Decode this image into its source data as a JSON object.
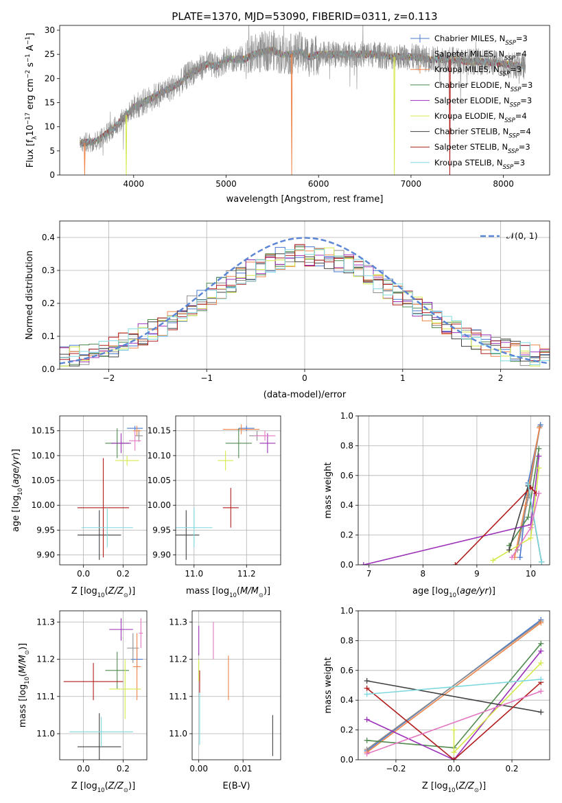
{
  "colors": {
    "Chabrier MILES": "#4878d0",
    "Salpeter MILES": "#8c8c8c",
    "Kroupa MILES": "#ee854a",
    "Chabrier ELODIE": "#4f8a4f",
    "Salpeter ELODIE": "#9b30b8",
    "Kroupa ELODIE": "#d5e84a",
    "Chabrier STELIB": "#404040",
    "Salpeter STELIB": "#b01c1c",
    "Kroupa STELIB": "#7ed8df",
    "extra_pink": "#e377c2",
    "gaussian": "#5b86d6"
  },
  "chart_data": [
    {
      "id": "spectrum",
      "type": "line",
      "title": "PLATE=1370, MJD=53090, FIBERID=0311, z=0.113",
      "xlabel": "wavelength [Angstrom, rest frame]",
      "ylabel": "Flux [f_λ 10^-17 erg cm^-2 s^-1 A^-1]",
      "xlim": [
        3200,
        8500
      ],
      "ylim": [
        0,
        31
      ],
      "xticks": [
        "4000",
        "5000",
        "6000",
        "7000",
        "8000"
      ],
      "yticks": [
        "0",
        "5",
        "10",
        "15",
        "20",
        "25",
        "30"
      ],
      "grid": false,
      "legend_position": "top-right",
      "legend": [
        {
          "name": "Chabrier MILES",
          "nssp": "3"
        },
        {
          "name": "Salpeter MILES",
          "nssp": "4"
        },
        {
          "name": "Kroupa MILES",
          "nssp": "3"
        },
        {
          "name": "Chabrier ELODIE",
          "nssp": "3"
        },
        {
          "name": "Salpeter ELODIE",
          "nssp": "3"
        },
        {
          "name": "Kroupa ELODIE",
          "nssp": "4"
        },
        {
          "name": "Chabrier STELIB",
          "nssp": "4"
        },
        {
          "name": "Salpeter STELIB",
          "nssp": "3"
        },
        {
          "name": "Kroupa STELIB",
          "nssp": "3"
        }
      ],
      "continuum": {
        "x": [
          3420,
          3600,
          3700,
          3800,
          3900,
          4000,
          4100,
          4200,
          4300,
          4400,
          4500,
          4600,
          4700,
          4800,
          4900,
          5000,
          5100,
          5200,
          5300,
          5400,
          5500,
          5600,
          5700,
          5800,
          5900,
          6000,
          6200,
          6400,
          6600,
          6800,
          7000,
          7200,
          7400,
          7600,
          7800,
          8000,
          8240
        ],
        "y": [
          6.5,
          7.0,
          8.5,
          10.0,
          12.0,
          14.0,
          15.0,
          16.0,
          17.0,
          18.0,
          19.0,
          21.0,
          22.0,
          23.0,
          22.5,
          24.0,
          24.0,
          24.0,
          25.0,
          25.5,
          26.0,
          25.0,
          25.0,
          25.5,
          24.5,
          25.0,
          25.0,
          25.0,
          25.0,
          24.5,
          24.5,
          24.0,
          24.0,
          23.5,
          23.5,
          23.0,
          22.5
        ]
      },
      "dropouts": [
        {
          "x": 3470,
          "series": "Kroupa MILES"
        },
        {
          "x": 3920,
          "series": "Kroupa ELODIE"
        },
        {
          "x": 5710,
          "series": "Kroupa MILES"
        },
        {
          "x": 6820,
          "series": "Kroupa ELODIE"
        },
        {
          "x": 7420,
          "series": "Salpeter STELIB"
        }
      ]
    },
    {
      "id": "residuals",
      "type": "line",
      "xlabel": "(data-model)/error",
      "ylabel": "Normed distribution",
      "xlim": [
        -2.5,
        2.5
      ],
      "ylim": [
        0,
        0.45
      ],
      "xticks": [
        "−2",
        "−1",
        "0",
        "1",
        "2"
      ],
      "yticks": [
        "0.0",
        "0.1",
        "0.2",
        "0.3",
        "0.4"
      ],
      "grid": true,
      "legend_position": "top-right",
      "legend": [
        "𝒩(0, 1)"
      ]
    },
    {
      "id": "age_vs_Z",
      "type": "scatter",
      "xlabel": "Z [log10(Z/Z⊙)]",
      "ylabel": "age  [log10(age/yr)]",
      "xlim": [
        -0.12,
        0.32
      ],
      "ylim": [
        9.88,
        10.18
      ],
      "xticks": [
        "0.0",
        "0.2"
      ],
      "yticks": [
        "9.90",
        "9.95",
        "10.00",
        "10.05",
        "10.10",
        "10.15"
      ],
      "grid": true,
      "points": [
        {
          "series": "Chabrier MILES",
          "x": 0.26,
          "xerr": 0.04,
          "y": 10.155,
          "yerr": 0.005
        },
        {
          "series": "Salpeter MILES",
          "x": 0.28,
          "xerr": 0.02,
          "y": 10.14,
          "yerr": 0.012
        },
        {
          "series": "Kroupa MILES",
          "x": 0.27,
          "xerr": 0.02,
          "y": 10.15,
          "yerr": 0.01
        },
        {
          "series": "Chabrier ELODIE",
          "x": 0.17,
          "xerr": 0.06,
          "y": 10.125,
          "yerr": 0.03
        },
        {
          "series": "Salpeter ELODIE",
          "x": 0.19,
          "xerr": 0.05,
          "y": 10.125,
          "yerr": 0.02
        },
        {
          "series": "Kroupa ELODIE",
          "x": 0.22,
          "xerr": 0.06,
          "y": 10.09,
          "yerr": 0.01
        },
        {
          "series": "Chabrier STELIB",
          "x": 0.08,
          "xerr": 0.11,
          "y": 9.94,
          "yerr": 0.05
        },
        {
          "series": "Salpeter STELIB",
          "x": 0.1,
          "xerr": 0.13,
          "y": 9.995,
          "yerr": 0.1
        },
        {
          "series": "Kroupa STELIB",
          "x": 0.12,
          "xerr": 0.13,
          "y": 9.955,
          "yerr": 0.04
        },
        {
          "series": "extra_pink",
          "x": 0.26,
          "xerr": 0.03,
          "y": 10.13,
          "yerr": 0.02
        }
      ]
    },
    {
      "id": "age_vs_mass",
      "type": "scatter",
      "xlabel": "mass [log10(M/M⊙)]",
      "ylabel": "",
      "xlim": [
        10.93,
        11.33
      ],
      "ylim": [
        9.88,
        10.18
      ],
      "xticks": [
        "11.0",
        "11.2"
      ],
      "yticks": [
        "9.90",
        "9.95",
        "10.00",
        "10.05",
        "10.10",
        "10.15"
      ],
      "grid": true,
      "points": [
        {
          "series": "Chabrier MILES",
          "x": 11.2,
          "xerr": 0.03,
          "y": 10.155,
          "yerr": 0.005
        },
        {
          "series": "Salpeter MILES",
          "x": 11.24,
          "xerr": 0.03,
          "y": 10.14,
          "yerr": 0.01
        },
        {
          "series": "Kroupa MILES",
          "x": 11.18,
          "xerr": 0.07,
          "y": 10.153,
          "yerr": 0.01
        },
        {
          "series": "Chabrier ELODIE",
          "x": 11.17,
          "xerr": 0.05,
          "y": 10.125,
          "yerr": 0.03
        },
        {
          "series": "Salpeter ELODIE",
          "x": 11.28,
          "xerr": 0.03,
          "y": 10.125,
          "yerr": 0.02
        },
        {
          "series": "Kroupa ELODIE",
          "x": 11.12,
          "xerr": 0.03,
          "y": 10.09,
          "yerr": 0.02
        },
        {
          "series": "Chabrier STELIB",
          "x": 10.97,
          "xerr": 0.05,
          "y": 9.94,
          "yerr": 0.05
        },
        {
          "series": "Salpeter STELIB",
          "x": 11.14,
          "xerr": 0.03,
          "y": 9.995,
          "yerr": 0.04
        },
        {
          "series": "Kroupa STELIB",
          "x": 11.0,
          "xerr": 0.07,
          "y": 9.955,
          "yerr": 0.04
        },
        {
          "series": "extra_pink",
          "x": 11.27,
          "xerr": 0.04,
          "y": 10.14,
          "yerr": 0.01
        }
      ]
    },
    {
      "id": "weight_vs_age",
      "type": "line",
      "xlabel": "age  [log10(age/yr)]",
      "ylabel": "mass weight",
      "xlim": [
        6.8,
        10.35
      ],
      "ylim": [
        0,
        1
      ],
      "xticks": [
        "7",
        "8",
        "9",
        "10"
      ],
      "yticks": [
        "0.0",
        "0.2",
        "0.4",
        "0.6",
        "0.8",
        "1.0"
      ],
      "grid": true,
      "series": [
        {
          "series": "Chabrier MILES",
          "x": [
            9.8,
            9.95,
            10.18
          ],
          "y": [
            0.05,
            0.55,
            0.94
          ]
        },
        {
          "series": "Salpeter MILES",
          "x": [
            9.75,
            9.95,
            10.17
          ],
          "y": [
            0.1,
            0.45,
            0.93
          ]
        },
        {
          "series": "Kroupa MILES",
          "x": [
            9.7,
            9.9,
            10.16
          ],
          "y": [
            0.05,
            0.4,
            0.92
          ]
        },
        {
          "series": "Chabrier ELODIE",
          "x": [
            9.6,
            9.95,
            10.15
          ],
          "y": [
            0.13,
            0.32,
            0.78
          ]
        },
        {
          "series": "Salpeter ELODIE",
          "x": [
            6.9,
            10.0,
            10.15
          ],
          "y": [
            0.0,
            0.27,
            0.73
          ]
        },
        {
          "series": "Kroupa ELODIE",
          "x": [
            9.3,
            10.0,
            10.15
          ],
          "y": [
            0.03,
            0.18,
            0.65
          ]
        },
        {
          "series": "Chabrier STELIB",
          "x": [
            9.6,
            9.95,
            10.2
          ],
          "y": [
            0.1,
            0.53,
            0.02
          ]
        },
        {
          "series": "Salpeter STELIB",
          "x": [
            8.6,
            10.0,
            10.1
          ],
          "y": [
            0.0,
            0.52,
            0.48
          ]
        },
        {
          "series": "Kroupa STELIB",
          "x": [
            9.95,
            10.2
          ],
          "y": [
            0.54,
            0.02
          ]
        },
        {
          "series": "extra_pink",
          "x": [
            9.65,
            10.0,
            10.15
          ],
          "y": [
            0.05,
            0.25,
            0.48
          ]
        }
      ]
    },
    {
      "id": "mass_vs_Z",
      "type": "scatter",
      "xlabel": "Z [log10(Z/Z⊙)]",
      "ylabel": "mass [log10(M/M⊙)]",
      "xlim": [
        -0.12,
        0.32
      ],
      "ylim": [
        10.93,
        11.33
      ],
      "xticks": [
        "0.0",
        "0.2"
      ],
      "yticks": [
        "11.0",
        "11.1",
        "11.2",
        "11.3"
      ],
      "grid": true,
      "points": [
        {
          "series": "Chabrier MILES",
          "x": 0.27,
          "xerr": 0.03,
          "y": 11.2,
          "yerr": 0.03
        },
        {
          "series": "Salpeter MILES",
          "x": 0.25,
          "xerr": 0.03,
          "y": 11.23,
          "yerr": 0.04
        },
        {
          "series": "Kroupa MILES",
          "x": 0.27,
          "xerr": 0.02,
          "y": 11.18,
          "yerr": 0.09
        },
        {
          "series": "Chabrier ELODIE",
          "x": 0.17,
          "xerr": 0.06,
          "y": 11.17,
          "yerr": 0.05
        },
        {
          "series": "Salpeter ELODIE",
          "x": 0.19,
          "xerr": 0.06,
          "y": 11.28,
          "yerr": 0.03
        },
        {
          "series": "Kroupa ELODIE",
          "x": 0.21,
          "xerr": 0.08,
          "y": 11.12,
          "yerr": 0.08
        },
        {
          "series": "Chabrier STELIB",
          "x": 0.08,
          "xerr": 0.11,
          "y": 10.965,
          "yerr": 0.09
        },
        {
          "series": "Salpeter STELIB",
          "x": 0.05,
          "xerr": 0.15,
          "y": 11.14,
          "yerr": 0.05
        },
        {
          "series": "Kroupa STELIB",
          "x": 0.09,
          "xerr": 0.16,
          "y": 11.005,
          "yerr": 0.04
        },
        {
          "series": "extra_pink",
          "x": 0.29,
          "xerr": 0.01,
          "y": 11.27,
          "yerr": 0.04
        }
      ]
    },
    {
      "id": "mass_vs_EBV",
      "type": "scatter",
      "xlabel": "E(B-V)",
      "ylabel": "",
      "xlim": [
        -0.0015,
        0.0185
      ],
      "ylim": [
        10.93,
        11.33
      ],
      "xticks": [
        "0.00",
        "0.01"
      ],
      "yticks": [
        "11.0",
        "11.1",
        "11.2",
        "11.3"
      ],
      "grid": true,
      "points": [
        {
          "series": "Salpeter ELODIE",
          "x": 0.0,
          "y": 11.25,
          "yerr": 0.04
        },
        {
          "series": "Kroupa ELODIE",
          "x": 0.0,
          "y": 11.17,
          "yerr": 0.03
        },
        {
          "series": "Salpeter STELIB",
          "x": 0.0002,
          "y": 11.14,
          "yerr": 0.03
        },
        {
          "series": "Kroupa STELIB",
          "x": 0.0002,
          "y": 11.04,
          "yerr": 0.07
        },
        {
          "series": "extra_pink",
          "x": 0.0033,
          "y": 11.25,
          "yerr": 0.05
        },
        {
          "series": "Kroupa MILES",
          "x": 0.0067,
          "y": 11.15,
          "yerr": 0.06
        },
        {
          "series": "Chabrier STELIB",
          "x": 0.0167,
          "y": 10.995,
          "yerr": 0.055
        }
      ]
    },
    {
      "id": "weight_vs_Z",
      "type": "line",
      "xlabel": "Z [log10(Z/Z⊙)]",
      "ylabel": "mass weight",
      "xlim": [
        -0.33,
        0.33
      ],
      "ylim": [
        0,
        1
      ],
      "xticks": [
        "−0.2",
        "0.0",
        "0.2"
      ],
      "yticks": [
        "0.0",
        "0.2",
        "0.4",
        "0.6",
        "0.8",
        "1.0"
      ],
      "grid": true,
      "series": [
        {
          "series": "Chabrier MILES",
          "x": [
            -0.3,
            0.3
          ],
          "y": [
            0.06,
            0.94
          ]
        },
        {
          "series": "Salpeter MILES",
          "x": [
            -0.3,
            0.3
          ],
          "y": [
            0.07,
            0.93
          ]
        },
        {
          "series": "Kroupa MILES",
          "x": [
            -0.3,
            0.3
          ],
          "y": [
            0.05,
            0.92
          ]
        },
        {
          "series": "Chabrier ELODIE",
          "x": [
            -0.3,
            0.0,
            0.3
          ],
          "y": [
            0.13,
            0.08,
            0.78
          ]
        },
        {
          "series": "Salpeter ELODIE",
          "x": [
            -0.3,
            0.0,
            0.3
          ],
          "y": [
            0.27,
            0.0,
            0.73
          ]
        },
        {
          "series": "Kroupa ELODIE",
          "x": [
            0.0,
            0.0,
            0.3
          ],
          "y": [
            0.2,
            0.05,
            0.65
          ]
        },
        {
          "series": "Chabrier STELIB",
          "x": [
            -0.3,
            0.3
          ],
          "y": [
            0.53,
            0.32
          ]
        },
        {
          "series": "Salpeter STELIB",
          "x": [
            -0.3,
            0.0,
            0.3
          ],
          "y": [
            0.48,
            0.0,
            0.52
          ]
        },
        {
          "series": "Kroupa STELIB",
          "x": [
            -0.3,
            0.3
          ],
          "y": [
            0.44,
            0.54
          ]
        },
        {
          "series": "extra_pink",
          "x": [
            -0.3,
            0.3
          ],
          "y": [
            0.04,
            0.46
          ]
        }
      ]
    }
  ]
}
